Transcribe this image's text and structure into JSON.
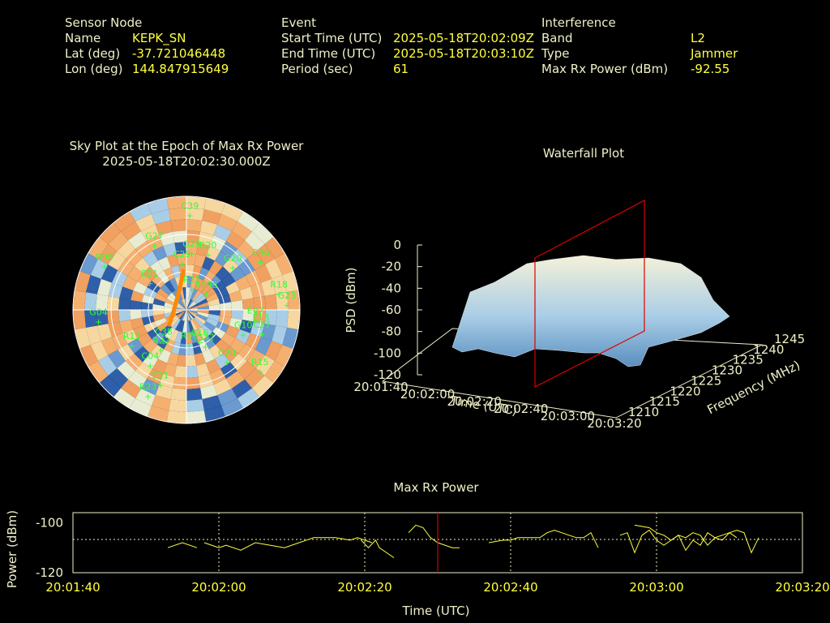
{
  "header": {
    "sensor": {
      "heading": "Sensor Node",
      "rows": [
        {
          "label": "Name",
          "value": "KEPK_SN"
        },
        {
          "label": "Lat (deg)",
          "value": "-37.721046448"
        },
        {
          "label": "Lon (deg)",
          "value": "144.847915649"
        }
      ]
    },
    "event": {
      "heading": "Event",
      "rows": [
        {
          "label": "Start Time (UTC)",
          "value": "2025-05-18T20:02:09Z"
        },
        {
          "label": "End Time (UTC)",
          "value": "2025-05-18T20:03:10Z"
        },
        {
          "label": "Period (sec)",
          "value": "61"
        }
      ]
    },
    "interference": {
      "heading": "Interference",
      "rows": [
        {
          "label": "Band",
          "value": "L2"
        },
        {
          "label": "Type",
          "value": "Jammer"
        },
        {
          "label": "Max Rx Power (dBm)",
          "value": "-92.55"
        }
      ]
    }
  },
  "colors": {
    "label": "#f0f0c8",
    "value": "#ffff40",
    "satellite": "#33ff33",
    "line": "#ffff40",
    "marker": "#dd0000",
    "track": "#ff8800"
  },
  "chart_data": [
    {
      "type": "scatter",
      "title": "Sky Plot at the Epoch of Max Rx Power",
      "subtitle": "2025-05-18T20:02:30.000Z",
      "satellites": [
        {
          "name": "C39",
          "az": 2,
          "el": 12
        },
        {
          "name": "G27",
          "az": 335,
          "el": 30
        },
        {
          "name": "R20",
          "az": 20,
          "el": 40
        },
        {
          "name": "G29",
          "az": 5,
          "el": 42
        },
        {
          "name": "C29",
          "az": 355,
          "el": 50
        },
        {
          "name": "R08",
          "az": 300,
          "el": 15
        },
        {
          "name": "C46",
          "az": 55,
          "el": 18
        },
        {
          "name": "R18",
          "az": 78,
          "el": 15
        },
        {
          "name": "G23",
          "az": 85,
          "el": 10
        },
        {
          "name": "E01",
          "az": 310,
          "el": 52
        },
        {
          "name": "E31",
          "az": 200,
          "el": 30
        },
        {
          "name": "R23",
          "az": 205,
          "el": 18
        },
        {
          "name": "C04",
          "az": 215,
          "el": 40
        },
        {
          "name": "R15",
          "az": 128,
          "el": 16
        },
        {
          "name": "C37",
          "az": 105,
          "el": 28
        },
        {
          "name": "E13",
          "az": 100,
          "el": 30
        },
        {
          "name": "E07",
          "az": 95,
          "el": 35
        },
        {
          "name": "G10",
          "az": 110,
          "el": 42
        },
        {
          "name": "C20",
          "az": 140,
          "el": 40
        },
        {
          "name": "G32",
          "az": 150,
          "el": 60
        },
        {
          "name": "C16",
          "az": 155,
          "el": 65
        },
        {
          "name": "R06",
          "az": 175,
          "el": 65
        },
        {
          "name": "G04",
          "az": 265,
          "el": 20
        },
        {
          "name": "R13",
          "az": 240,
          "el": 40
        },
        {
          "name": "R22",
          "az": 215,
          "el": 55
        },
        {
          "name": "C38",
          "az": 220,
          "el": 62
        },
        {
          "name": "R32",
          "az": 12,
          "el": 70
        },
        {
          "name": "G20",
          "az": 45,
          "el": 38
        },
        {
          "name": "R195",
          "az": 45,
          "el": 68
        }
      ]
    },
    {
      "type": "area",
      "title": "Waterfall Plot",
      "xlabel": "Time (UTC)",
      "ylabel": "Frequency (MHz)",
      "zlabel": "PSD (dBm)",
      "x_ticks": [
        "20:01:40",
        "20:02:00",
        "20:02:20",
        "20:02:40",
        "20:03:00",
        "20:03:20"
      ],
      "y_ticks": [
        "1210",
        "1215",
        "1220",
        "1225",
        "1230",
        "1235",
        "1240",
        "1245"
      ],
      "z_ticks": [
        "0",
        "-20",
        "-40",
        "-60",
        "-80",
        "-100",
        "-120"
      ],
      "zlim": [
        -120,
        0
      ]
    },
    {
      "type": "line",
      "title": "Max Rx Power",
      "xlabel": "Time (UTC)",
      "ylabel": "Power (dBm)",
      "x_ticks": [
        "20:01:40",
        "20:02:00",
        "20:02:20",
        "20:02:40",
        "20:03:00",
        "20:03:20"
      ],
      "y_ticks": [
        "-100",
        "-120"
      ],
      "xlim_sec": [
        0,
        100
      ],
      "ylim": [
        -120,
        -100
      ],
      "marker_sec": 50,
      "series": [
        {
          "x": [
            13,
            15,
            17
          ],
          "y": [
            -110,
            -108,
            -110
          ]
        },
        {
          "x": [
            18,
            20,
            21,
            23,
            25,
            27,
            29,
            31,
            33,
            35,
            36,
            38,
            39,
            41
          ],
          "y": [
            -108,
            -110,
            -109,
            -111,
            -108,
            -109,
            -110,
            -108,
            -106,
            -106,
            -106,
            -107,
            -106,
            -108
          ]
        },
        {
          "x": [
            39.5,
            40.5,
            41.5,
            42,
            44
          ],
          "y": [
            -107,
            -110,
            -107,
            -110,
            -114
          ]
        },
        {
          "x": [
            46,
            47,
            48,
            49,
            50,
            51,
            52,
            53
          ],
          "y": [
            -104,
            -101,
            -102,
            -106,
            -108,
            -109,
            -110,
            -110
          ]
        },
        {
          "x": [
            57,
            59,
            60,
            61,
            62,
            63,
            64,
            65,
            66,
            67,
            68,
            69,
            70,
            71,
            72
          ],
          "y": [
            -108,
            -107,
            -107,
            -106,
            -106,
            -106,
            -106,
            -104,
            -103,
            -104,
            -105,
            -106,
            -106,
            -104,
            -110
          ]
        },
        {
          "x": [
            75,
            76,
            77,
            78,
            79,
            80,
            81,
            82,
            83,
            84,
            85,
            86,
            87,
            88,
            89,
            90,
            91
          ],
          "y": [
            -105,
            -104,
            -112,
            -105,
            -103,
            -107,
            -109,
            -107,
            -105,
            -111,
            -107,
            -109,
            -104,
            -106,
            -107,
            -104,
            -106
          ]
        },
        {
          "x": [
            77,
            79,
            80,
            81,
            82,
            83,
            84,
            85,
            86,
            87,
            88,
            89,
            90,
            91,
            92,
            93,
            94
          ],
          "y": [
            -101,
            -102,
            -104,
            -105,
            -107,
            -105,
            -106,
            -104,
            -105,
            -109,
            -106,
            -105,
            -104,
            -103,
            -104,
            -112,
            -106
          ]
        }
      ]
    }
  ]
}
